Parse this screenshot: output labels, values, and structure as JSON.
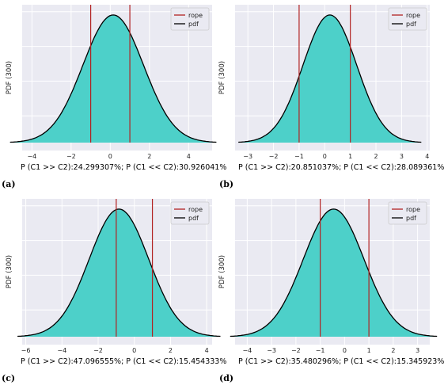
{
  "chart_data": [
    {
      "type": "area",
      "label": "(a)",
      "ylabel": "PDF (300)",
      "caption": "P (C1 >> C2):24.299307%; P (C1 << C2):30.926041%",
      "legend": [
        "rope",
        "pdf"
      ],
      "legend_position": "top-right",
      "grid": true,
      "xlim": [
        -4.5,
        5.2
      ],
      "xticks": [
        -4,
        -2,
        0,
        2,
        4
      ],
      "xtick_labels": [
        "−4",
        "−2",
        "0",
        "2",
        "4"
      ],
      "mean": 0.15,
      "std": 1.55,
      "rope": [
        -1,
        1
      ],
      "colors": {
        "fill": "#4dd0c9",
        "pdf": "#000000",
        "rope": "#b22222",
        "bg": "#eaeaf2"
      }
    },
    {
      "type": "area",
      "label": "(b)",
      "ylabel": "PDF (300)",
      "caption": "P (C1 >> C2):20.851037%; P (C1 << C2):28.089361%",
      "legend": [
        "rope",
        "pdf"
      ],
      "legend_position": "top-right",
      "grid": true,
      "xlim": [
        -3.5,
        4.1
      ],
      "xticks": [
        -3,
        -2,
        -1,
        0,
        1,
        2,
        3,
        4
      ],
      "xtick_labels": [
        "−3",
        "−2",
        "−1",
        "0",
        "1",
        "2",
        "3",
        "4"
      ],
      "mean": 0.2,
      "std": 1.05,
      "rope": [
        -1,
        1
      ],
      "colors": {
        "fill": "#4dd0c9",
        "pdf": "#000000",
        "rope": "#b22222",
        "bg": "#eaeaf2"
      }
    },
    {
      "type": "area",
      "label": "(c)",
      "ylabel": "PDF (300)",
      "caption": "P (C1 >> C2):47.096555%; P (C1 << C2):15.454333%",
      "legend": [
        "rope",
        "pdf"
      ],
      "legend_position": "top-right",
      "grid": true,
      "xlim": [
        -6.2,
        4.3
      ],
      "xticks": [
        -6,
        -4,
        -2,
        0,
        2,
        4
      ],
      "xtick_labels": [
        "−6",
        "−4",
        "−2",
        "0",
        "2",
        "4"
      ],
      "mean": -0.85,
      "std": 1.65,
      "rope": [
        -1,
        1
      ],
      "colors": {
        "fill": "#4dd0c9",
        "pdf": "#000000",
        "rope": "#b22222",
        "bg": "#eaeaf2"
      }
    },
    {
      "type": "area",
      "label": "(d)",
      "ylabel": "PDF (300)",
      "caption": "P (C1 >> C2):35.480296%; P (C1 << C2):15.345923%",
      "legend": [
        "rope",
        "pdf"
      ],
      "legend_position": "top-right",
      "grid": true,
      "xlim": [
        -4.5,
        3.5
      ],
      "xticks": [
        -4,
        -3,
        -2,
        -1,
        0,
        1,
        2,
        3
      ],
      "xtick_labels": [
        "−4",
        "−3",
        "−2",
        "−1",
        "0",
        "1",
        "2",
        "3"
      ],
      "mean": -0.45,
      "std": 1.25,
      "rope": [
        -1,
        1
      ],
      "colors": {
        "fill": "#4dd0c9",
        "pdf": "#000000",
        "rope": "#b22222",
        "bg": "#eaeaf2"
      }
    }
  ]
}
